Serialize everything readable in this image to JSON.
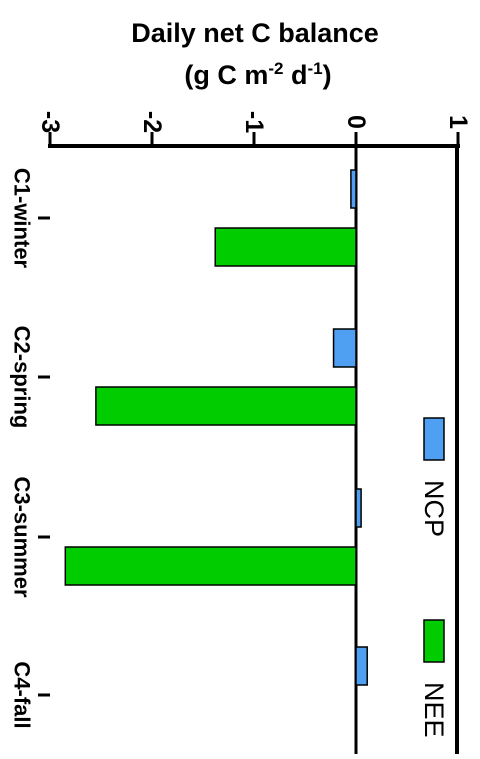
{
  "chart_data": {
    "type": "bar",
    "orientation": "rotated-90-clockwise",
    "title": "Daily net C balance",
    "ylabel_base": "(g C m",
    "ylabel_sup1": "-2",
    "ylabel_mid": " d",
    "ylabel_sup2": "-1",
    "ylabel_end": ")",
    "categories": [
      "C1-winter",
      "C2-spring",
      "C3-summer",
      "C4-fall"
    ],
    "series": [
      {
        "name": "NCP",
        "color": "#4f9ff2",
        "values": [
          -0.05,
          -0.22,
          0.05,
          0.11
        ]
      },
      {
        "name": "NEE",
        "color": "#00cc00",
        "values": [
          -1.38,
          -2.55,
          -2.85,
          null
        ]
      }
    ],
    "ylim": [
      -3,
      1
    ],
    "ticks": [
      "-3",
      "-2",
      "-1",
      "0",
      "1"
    ],
    "tick_values": [
      -3,
      -2,
      -1,
      0,
      1
    ],
    "legend_position": "right",
    "grid": false
  }
}
